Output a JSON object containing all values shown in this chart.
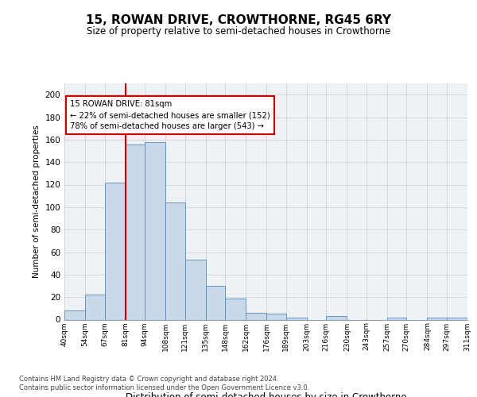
{
  "title": "15, ROWAN DRIVE, CROWTHORNE, RG45 6RY",
  "subtitle": "Size of property relative to semi-detached houses in Crowthorne",
  "xlabel": "Distribution of semi-detached houses by size in Crowthorne",
  "ylabel": "Number of semi-detached properties",
  "footnote1": "Contains HM Land Registry data © Crown copyright and database right 2024.",
  "footnote2": "Contains public sector information licensed under the Open Government Licence v3.0.",
  "bin_labels": [
    "40sqm",
    "54sqm",
    "67sqm",
    "81sqm",
    "94sqm",
    "108sqm",
    "121sqm",
    "135sqm",
    "148sqm",
    "162sqm",
    "176sqm",
    "189sqm",
    "203sqm",
    "216sqm",
    "230sqm",
    "243sqm",
    "257sqm",
    "270sqm",
    "284sqm",
    "297sqm",
    "311sqm"
  ],
  "bar_values": [
    8,
    22,
    122,
    156,
    158,
    104,
    53,
    30,
    19,
    6,
    5,
    2,
    0,
    3,
    0,
    0,
    2,
    0,
    2,
    2
  ],
  "bin_edges": [
    40,
    54,
    67,
    81,
    94,
    108,
    121,
    135,
    148,
    162,
    176,
    189,
    203,
    216,
    230,
    243,
    257,
    270,
    284,
    297,
    311
  ],
  "property_size": 81,
  "pct_smaller": 22,
  "pct_larger": 78,
  "count_smaller": 152,
  "count_larger": 543,
  "bar_color": "#c9d9ea",
  "bar_edge_color": "#5588bb",
  "vline_color": "#cc0000",
  "annotation_box_color": "#cc0000",
  "ylim": [
    0,
    210
  ],
  "yticks": [
    0,
    20,
    40,
    60,
    80,
    100,
    120,
    140,
    160,
    180,
    200
  ],
  "grid_color": "#cccccc",
  "background_color": "#edf2f7"
}
